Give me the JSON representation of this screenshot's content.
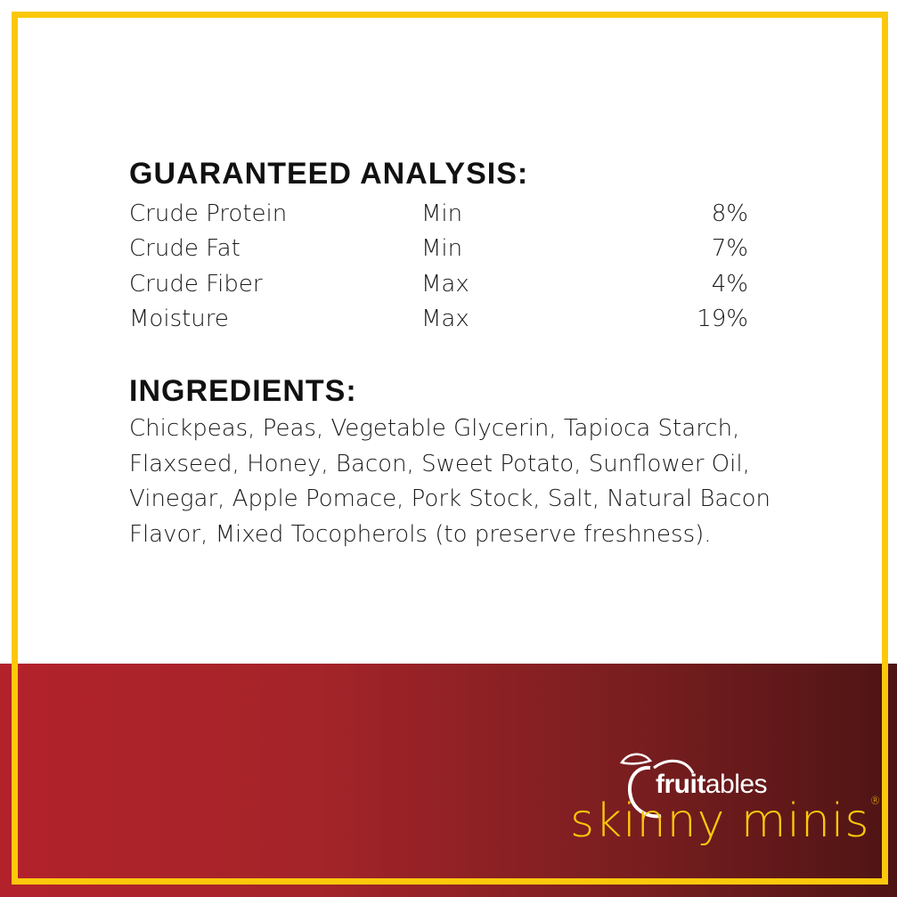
{
  "guaranteed_analysis": {
    "heading": "GUARANTEED ANALYSIS:",
    "rows": [
      {
        "name": "Crude Protein",
        "qualifier": "Min",
        "value": "8%"
      },
      {
        "name": "Crude Fat",
        "qualifier": "Min",
        "value": "7%"
      },
      {
        "name": "Crude Fiber",
        "qualifier": "Max",
        "value": "4%"
      },
      {
        "name": "Moisture",
        "qualifier": "Max",
        "value": "19%"
      }
    ]
  },
  "ingredients": {
    "heading": "INGREDIENTS:",
    "text": "Chickpeas, Peas, Vegetable Glycerin, Tapioca Starch, Flaxseed, Honey, Bacon, Sweet Potato, Sunflower Oil, Vinegar, Apple Pomace, Pork Stock, Salt, Natural Bacon Flavor, Mixed Tocopherols (to preserve freshness)."
  },
  "logo": {
    "brand_bold": "fruit",
    "brand_light": "ables",
    "product": "skinny minis",
    "registered": "®"
  },
  "colors": {
    "frame": "#fcc80c",
    "band_start": "#b3222a",
    "band_end": "#4e1414"
  }
}
